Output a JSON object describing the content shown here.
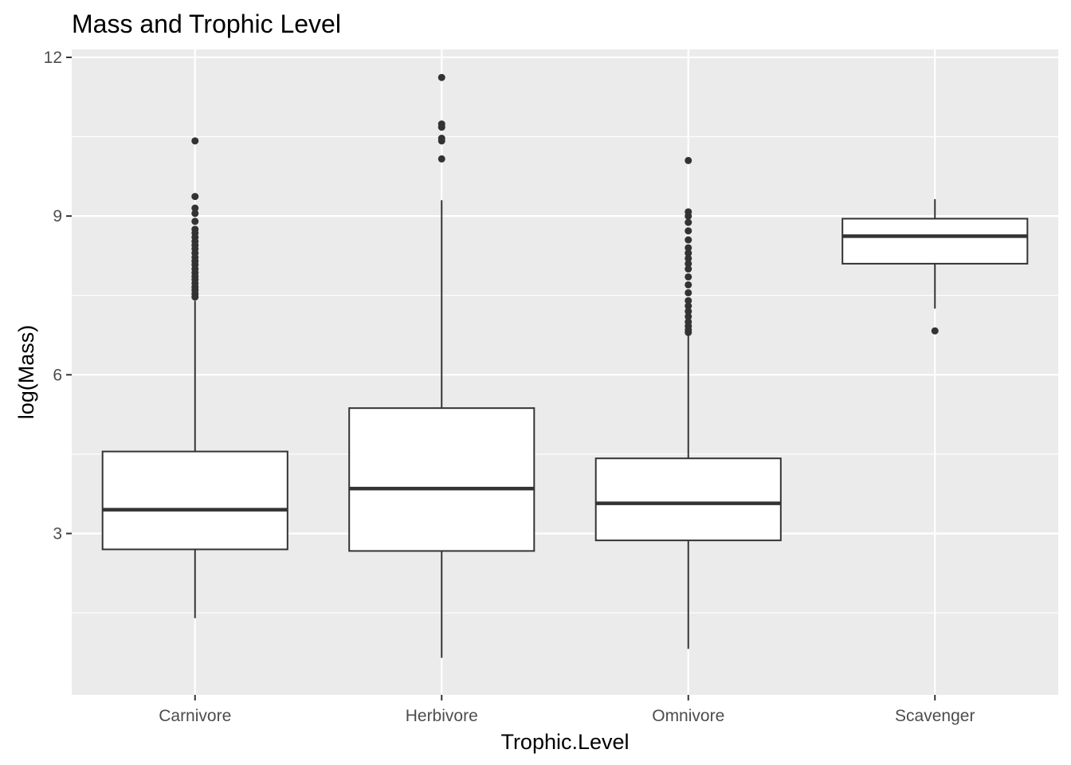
{
  "chart_data": {
    "type": "boxplot",
    "title": "Mass and Trophic Level",
    "xlabel": "Trophic.Level",
    "ylabel": "log(Mass)",
    "ylim": [
      -0.05,
      12.15
    ],
    "yticks": [
      3,
      6,
      9,
      12
    ],
    "y_minor_ticks": [
      1.5,
      4.5,
      7.5,
      10.5
    ],
    "grid": true,
    "legend": "none",
    "categories": [
      "Carnivore",
      "Herbivore",
      "Omnivore",
      "Scavenger"
    ],
    "boxes": [
      {
        "category": "Carnivore",
        "whisker_low": 1.4,
        "q1": 2.7,
        "median": 3.45,
        "q3": 4.55,
        "whisker_high": 7.4,
        "outliers": [
          10.42,
          9.37,
          9.15,
          9.05,
          8.9,
          8.75,
          8.68,
          8.6,
          8.52,
          8.45,
          8.38,
          8.3,
          8.22,
          8.15,
          8.08,
          8.0,
          7.93,
          7.86,
          7.8,
          7.73,
          7.66,
          7.6,
          7.53,
          7.47
        ]
      },
      {
        "category": "Herbivore",
        "whisker_low": 0.65,
        "q1": 2.67,
        "median": 3.85,
        "q3": 5.37,
        "whisker_high": 9.3,
        "outliers": [
          11.62,
          10.74,
          10.68,
          10.47,
          10.42,
          10.08
        ]
      },
      {
        "category": "Omnivore",
        "whisker_low": 0.82,
        "q1": 2.87,
        "median": 3.57,
        "q3": 4.42,
        "whisker_high": 6.75,
        "outliers": [
          10.05,
          9.08,
          9.0,
          8.88,
          8.72,
          8.55,
          8.4,
          8.3,
          8.2,
          8.1,
          8.0,
          7.85,
          7.7,
          7.55,
          7.4,
          7.3,
          7.2,
          7.1,
          7.0,
          6.92,
          6.85,
          6.8
        ]
      },
      {
        "category": "Scavenger",
        "whisker_low": 7.25,
        "q1": 8.1,
        "median": 8.62,
        "q3": 8.95,
        "whisker_high": 9.32,
        "outliers": [
          6.83
        ]
      }
    ],
    "colors": {
      "panel_background": "#ebebeb",
      "grid": "#ffffff",
      "box_fill": "#ffffff",
      "box_line": "#333333",
      "tick_mark": "#333333",
      "tick_label": "#4d4d4d"
    }
  }
}
